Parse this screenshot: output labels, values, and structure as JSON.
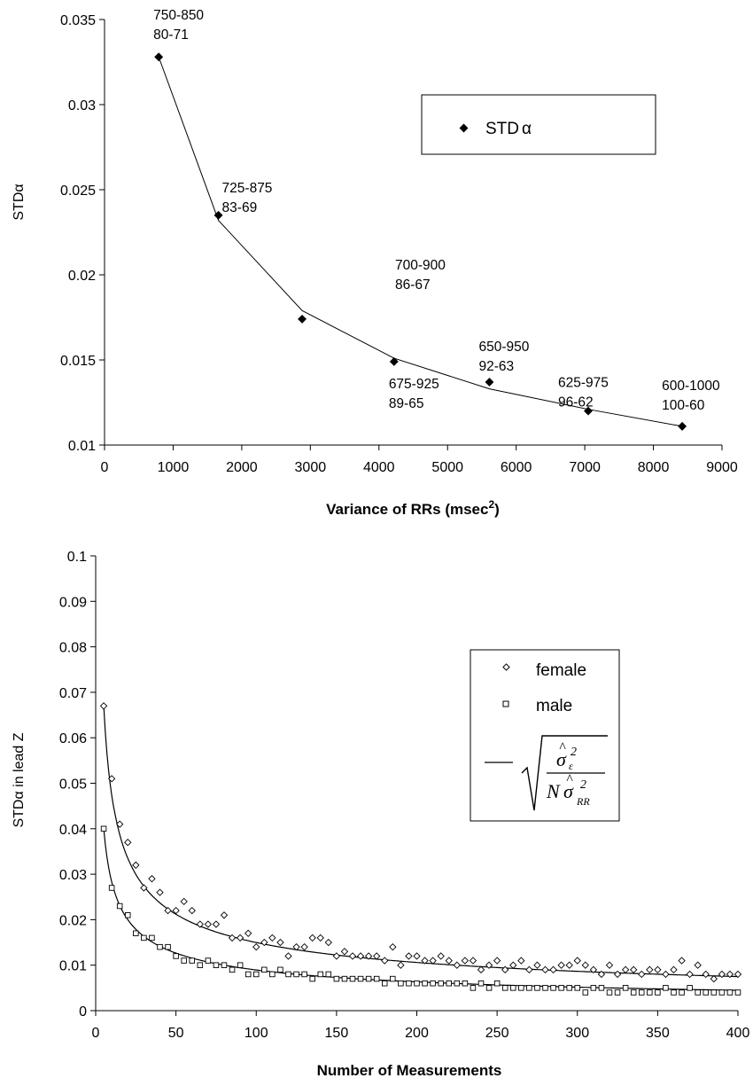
{
  "chart_data": [
    {
      "type": "scatter",
      "xlabel": "Variance of RRs (msec",
      "xlabel_sup": "2",
      "xlabel_end": ")",
      "ylabel": "STD",
      "ylabel_greek": "α",
      "xlim": [
        0,
        9000
      ],
      "ylim": [
        0.01,
        0.035
      ],
      "xticks": [
        0,
        1000,
        2000,
        3000,
        4000,
        5000,
        6000,
        7000,
        8000,
        9000
      ],
      "yticks": [
        "0.01",
        "0.015",
        "0.02",
        "0.025",
        "0.03",
        "0.035"
      ],
      "grid": false,
      "legend": {
        "placement": "top-right",
        "entries": [
          {
            "label": "STD",
            "greek": "α",
            "marker": "diamond-filled"
          }
        ]
      },
      "series": [
        {
          "name": "STD",
          "x": [
            790,
            1660,
            2880,
            4220,
            5610,
            7050,
            8420
          ],
          "y": [
            0.0328,
            0.0235,
            0.0174,
            0.0149,
            0.0137,
            0.012,
            0.0111
          ],
          "labels": [
            [
              "750-850",
              "80-71"
            ],
            [
              "725-875",
              "83-69"
            ],
            [
              "700-900",
              "86-67"
            ],
            [
              "675-925",
              "89-65"
            ],
            [
              "650-950",
              "92-63"
            ],
            [
              "625-975",
              "96-62"
            ],
            [
              "600-1000",
              "100-60"
            ]
          ]
        }
      ],
      "fit_line": {
        "x": [
          790,
          1660,
          2880,
          4220,
          5610,
          7050,
          8420
        ],
        "y": [
          0.0328,
          0.0232,
          0.0179,
          0.0151,
          0.0133,
          0.0121,
          0.0111
        ]
      }
    },
    {
      "type": "scatter",
      "xlabel": "Number of Measurements",
      "ylabel": "STD",
      "ylabel_greek": "α",
      "ylabel_end": " in lead Z",
      "xlim": [
        0,
        400
      ],
      "ylim": [
        0,
        0.1
      ],
      "xticks": [
        0,
        50,
        100,
        150,
        200,
        250,
        300,
        350,
        400
      ],
      "yticks": [
        "0",
        "0.01",
        "0.02",
        "0.03",
        "0.04",
        "0.05",
        "0.06",
        "0.07",
        "0.08",
        "0.09",
        "0.1"
      ],
      "grid": false,
      "legend": {
        "placement": "right",
        "entries": [
          {
            "label": "female",
            "marker": "diamond-open"
          },
          {
            "label": "male",
            "marker": "square-open"
          },
          {
            "label": "σ̂ε² / (N σ̂RR²)",
            "marker": "line"
          }
        ]
      },
      "series": [
        {
          "name": "female",
          "x": [
            5,
            10,
            15,
            20,
            25,
            30,
            35,
            40,
            45,
            50,
            55,
            60,
            65,
            70,
            75,
            80,
            85,
            90,
            95,
            100,
            105,
            110,
            115,
            120,
            125,
            130,
            135,
            140,
            145,
            150,
            155,
            160,
            165,
            170,
            175,
            180,
            185,
            190,
            195,
            200,
            205,
            210,
            215,
            220,
            225,
            230,
            235,
            240,
            245,
            250,
            255,
            260,
            265,
            270,
            275,
            280,
            285,
            290,
            295,
            300,
            305,
            310,
            315,
            320,
            325,
            330,
            335,
            340,
            345,
            350,
            355,
            360,
            365,
            370,
            375,
            380,
            385,
            390,
            395,
            400
          ],
          "y": [
            0.067,
            0.051,
            0.041,
            0.037,
            0.032,
            0.027,
            0.029,
            0.026,
            0.022,
            0.022,
            0.024,
            0.022,
            0.019,
            0.019,
            0.019,
            0.021,
            0.016,
            0.016,
            0.017,
            0.014,
            0.015,
            0.016,
            0.015,
            0.012,
            0.014,
            0.014,
            0.016,
            0.016,
            0.015,
            0.012,
            0.013,
            0.012,
            0.012,
            0.012,
            0.012,
            0.011,
            0.014,
            0.01,
            0.012,
            0.012,
            0.011,
            0.011,
            0.012,
            0.011,
            0.01,
            0.011,
            0.011,
            0.009,
            0.01,
            0.011,
            0.009,
            0.01,
            0.011,
            0.009,
            0.01,
            0.009,
            0.009,
            0.01,
            0.01,
            0.011,
            0.01,
            0.009,
            0.008,
            0.01,
            0.008,
            0.009,
            0.009,
            0.008,
            0.009,
            0.009,
            0.008,
            0.009,
            0.011,
            0.008,
            0.01,
            0.008,
            0.007,
            0.008,
            0.008,
            0.008
          ]
        },
        {
          "name": "male",
          "x": [
            5,
            10,
            15,
            20,
            25,
            30,
            35,
            40,
            45,
            50,
            55,
            60,
            65,
            70,
            75,
            80,
            85,
            90,
            95,
            100,
            105,
            110,
            115,
            120,
            125,
            130,
            135,
            140,
            145,
            150,
            155,
            160,
            165,
            170,
            175,
            180,
            185,
            190,
            195,
            200,
            205,
            210,
            215,
            220,
            225,
            230,
            235,
            240,
            245,
            250,
            255,
            260,
            265,
            270,
            275,
            280,
            285,
            290,
            295,
            300,
            305,
            310,
            315,
            320,
            325,
            330,
            335,
            340,
            345,
            350,
            355,
            360,
            365,
            370,
            375,
            380,
            385,
            390,
            395,
            400
          ],
          "y": [
            0.04,
            0.027,
            0.023,
            0.021,
            0.017,
            0.016,
            0.016,
            0.014,
            0.014,
            0.012,
            0.011,
            0.011,
            0.01,
            0.011,
            0.01,
            0.01,
            0.009,
            0.01,
            0.008,
            0.008,
            0.009,
            0.008,
            0.009,
            0.008,
            0.008,
            0.008,
            0.007,
            0.008,
            0.008,
            0.007,
            0.007,
            0.007,
            0.007,
            0.007,
            0.007,
            0.006,
            0.007,
            0.006,
            0.006,
            0.006,
            0.006,
            0.006,
            0.006,
            0.006,
            0.006,
            0.006,
            0.005,
            0.006,
            0.005,
            0.006,
            0.005,
            0.005,
            0.005,
            0.005,
            0.005,
            0.005,
            0.005,
            0.005,
            0.005,
            0.005,
            0.004,
            0.005,
            0.005,
            0.004,
            0.004,
            0.005,
            0.004,
            0.004,
            0.004,
            0.004,
            0.005,
            0.004,
            0.004,
            0.005,
            0.004,
            0.004,
            0.004,
            0.004,
            0.004,
            0.004
          ]
        }
      ]
    }
  ]
}
